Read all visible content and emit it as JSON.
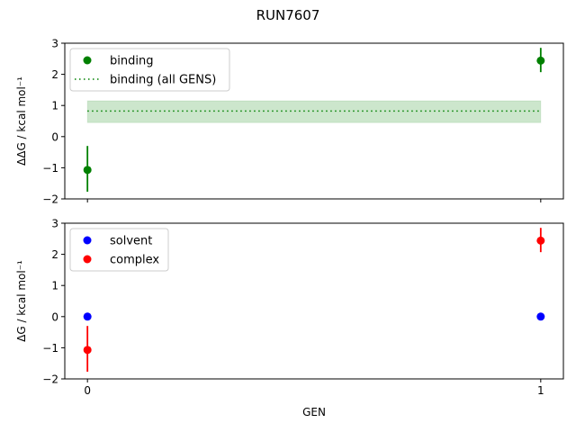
{
  "title": "RUN7607",
  "chart_data": [
    {
      "type": "scatter",
      "ylabel": "ΔΔG / kcal mol⁻¹",
      "ylim": [
        -2,
        3
      ],
      "xlim": [
        -0.05,
        1.05
      ],
      "yticks": [
        -2,
        -1,
        0,
        1,
        2,
        3
      ],
      "xticks": [
        0,
        1
      ],
      "show_xticklabels": false,
      "grid": false,
      "legend": "top-left",
      "series": [
        {
          "name": "binding",
          "color": "#008000",
          "x": [
            0,
            1
          ],
          "y": [
            -1.07,
            2.44
          ],
          "yerr_low": [
            -1.77,
            2.07
          ],
          "yerr_high": [
            -0.3,
            2.85
          ]
        }
      ],
      "reference": {
        "name": "binding (all GENS)",
        "color": "#008000",
        "value": 0.82,
        "band": [
          0.45,
          1.15
        ],
        "x": [
          0,
          1
        ]
      }
    },
    {
      "type": "scatter",
      "ylabel": "ΔG / kcal mol⁻¹",
      "xlabel": "GEN",
      "ylim": [
        -2,
        3
      ],
      "xlim": [
        -0.05,
        1.05
      ],
      "yticks": [
        -2,
        -1,
        0,
        1,
        2,
        3
      ],
      "xticks": [
        0,
        1
      ],
      "show_xticklabels": true,
      "grid": false,
      "legend": "top-left",
      "series": [
        {
          "name": "solvent",
          "color": "#0000ff",
          "x": [
            0,
            1
          ],
          "y": [
            0.0,
            0.0
          ],
          "yerr_low": [
            -0.12,
            -0.12
          ],
          "yerr_high": [
            0.12,
            0.12
          ]
        },
        {
          "name": "complex",
          "color": "#ff0000",
          "x": [
            0,
            1
          ],
          "y": [
            -1.07,
            2.44
          ],
          "yerr_low": [
            -1.77,
            2.07
          ],
          "yerr_high": [
            -0.3,
            2.85
          ]
        }
      ]
    }
  ]
}
